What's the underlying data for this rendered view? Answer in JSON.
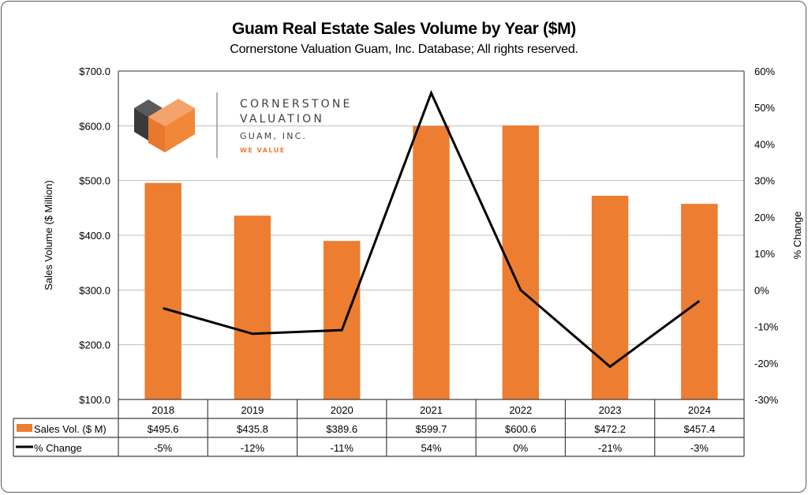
{
  "header": {
    "title": "Guam Real Estate Sales Volume by Year ($M)",
    "subtitle": "Cornerstone Valuation Guam, Inc.  Database;  All rights reserved."
  },
  "logo": {
    "line1": "CORNERSTONE",
    "line2": "VALUATION",
    "line3": "GUAM, INC.",
    "tagline": "WE VALUE"
  },
  "colors": {
    "bar": "#ED7D31",
    "line": "#000000",
    "grid": "#BFBFBF",
    "logo_orange": "#ED7D31",
    "logo_dark": "#404040"
  },
  "chart_data": {
    "type": "bar",
    "title": "Guam Real Estate Sales Volume by Year ($M)",
    "subtitle": "Cornerstone Valuation Guam, Inc.  Database;  All rights reserved.",
    "categories": [
      "2018",
      "2019",
      "2020",
      "2021",
      "2022",
      "2023",
      "2024"
    ],
    "series": [
      {
        "name": "Sales Vol.  ($ M)",
        "type": "bar",
        "axis": "left",
        "values": [
          495.6,
          435.8,
          389.6,
          599.7,
          600.6,
          472.2,
          457.4
        ],
        "labels": [
          "$495.6",
          "$435.8",
          "$389.6",
          "$599.7",
          "$600.6",
          "$472.2",
          "$457.4"
        ]
      },
      {
        "name": "% Change",
        "type": "line",
        "axis": "right",
        "values": [
          -5,
          -12,
          -11,
          54,
          0,
          -21,
          -3
        ],
        "labels": [
          "-5%",
          "-12%",
          "-11%",
          "54%",
          "0%",
          "-21%",
          "-3%"
        ]
      }
    ],
    "ylabel": "Sales Volume ($ Million)",
    "y2label": "% Change",
    "ylim": [
      100,
      700
    ],
    "y2lim": [
      -30,
      60
    ],
    "yticks": [
      "$700.0",
      "$600.0",
      "$500.0",
      "$400.0",
      "$300.0",
      "$200.0",
      "$100.0"
    ],
    "y2ticks": [
      "60%",
      "50%",
      "40%",
      "30%",
      "20%",
      "10%",
      "0%",
      "-10%",
      "-20%",
      "-30%"
    ],
    "grid": true,
    "legend": "data-table-bottom"
  }
}
